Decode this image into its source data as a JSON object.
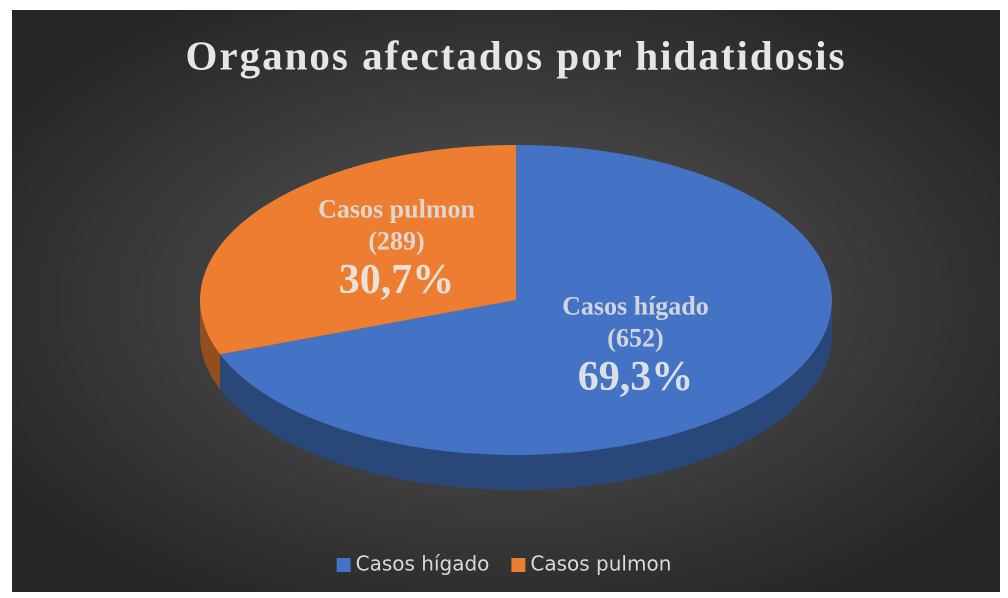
{
  "chart_data": {
    "type": "pie",
    "title": "Organos afectados por hidatidosis",
    "categories": [
      "Casos hígado",
      "Casos pulmon"
    ],
    "values": [
      69.3,
      30.7
    ],
    "value_labels": [
      "69,3%",
      "30,7%"
    ],
    "counts": [
      652,
      289
    ],
    "count_labels": [
      "(652)",
      "(289)"
    ],
    "colors": [
      "#4472c4",
      "#ed7d31"
    ],
    "legend": "bottom"
  }
}
